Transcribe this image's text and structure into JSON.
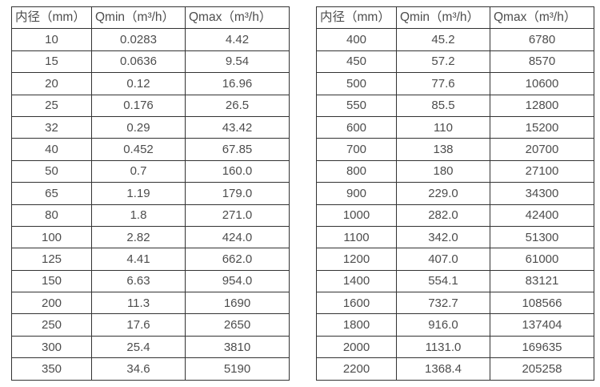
{
  "page": {
    "background_color": "#ffffff",
    "text_color": "#4d4d4d",
    "border_color": "#333333"
  },
  "tables": [
    {
      "name": "flow-table-small-diameters",
      "headers": [
        "内径（mm）",
        "Qmin（m³/h）",
        "Qmax（m³/h）"
      ],
      "rows": [
        [
          "10",
          "0.0283",
          "4.42"
        ],
        [
          "15",
          "0.0636",
          "9.54"
        ],
        [
          "20",
          "0.12",
          "16.96"
        ],
        [
          "25",
          "0.176",
          "26.5"
        ],
        [
          "32",
          "0.29",
          "43.42"
        ],
        [
          "40",
          "0.452",
          "67.85"
        ],
        [
          "50",
          "0.7",
          "160.0"
        ],
        [
          "65",
          "1.19",
          "179.0"
        ],
        [
          "80",
          "1.8",
          "271.0"
        ],
        [
          "100",
          "2.82",
          "424.0"
        ],
        [
          "125",
          "4.41",
          "662.0"
        ],
        [
          "150",
          "6.63",
          "954.0"
        ],
        [
          "200",
          "11.3",
          "1690"
        ],
        [
          "250",
          "17.6",
          "2650"
        ],
        [
          "300",
          "25.4",
          "3810"
        ],
        [
          "350",
          "34.6",
          "5190"
        ]
      ]
    },
    {
      "name": "flow-table-large-diameters",
      "headers": [
        "内径（mm）",
        "Qmin（m³/h）",
        "Qmax（m³/h）"
      ],
      "rows": [
        [
          "400",
          "45.2",
          "6780"
        ],
        [
          "450",
          "57.2",
          "8570"
        ],
        [
          "500",
          "77.6",
          "10600"
        ],
        [
          "550",
          "85.5",
          "12800"
        ],
        [
          "600",
          "110",
          "15200"
        ],
        [
          "700",
          "138",
          "20700"
        ],
        [
          "800",
          "180",
          "27100"
        ],
        [
          "900",
          "229.0",
          "34300"
        ],
        [
          "1000",
          "282.0",
          "42400"
        ],
        [
          "1100",
          "342.0",
          "51300"
        ],
        [
          "1200",
          "407.0",
          "61000"
        ],
        [
          "1400",
          "554.1",
          "83121"
        ],
        [
          "1600",
          "732.7",
          "108566"
        ],
        [
          "1800",
          "916.0",
          "137404"
        ],
        [
          "2000",
          "1131.0",
          "169635"
        ],
        [
          "2200",
          "1368.4",
          "205258"
        ]
      ]
    }
  ]
}
